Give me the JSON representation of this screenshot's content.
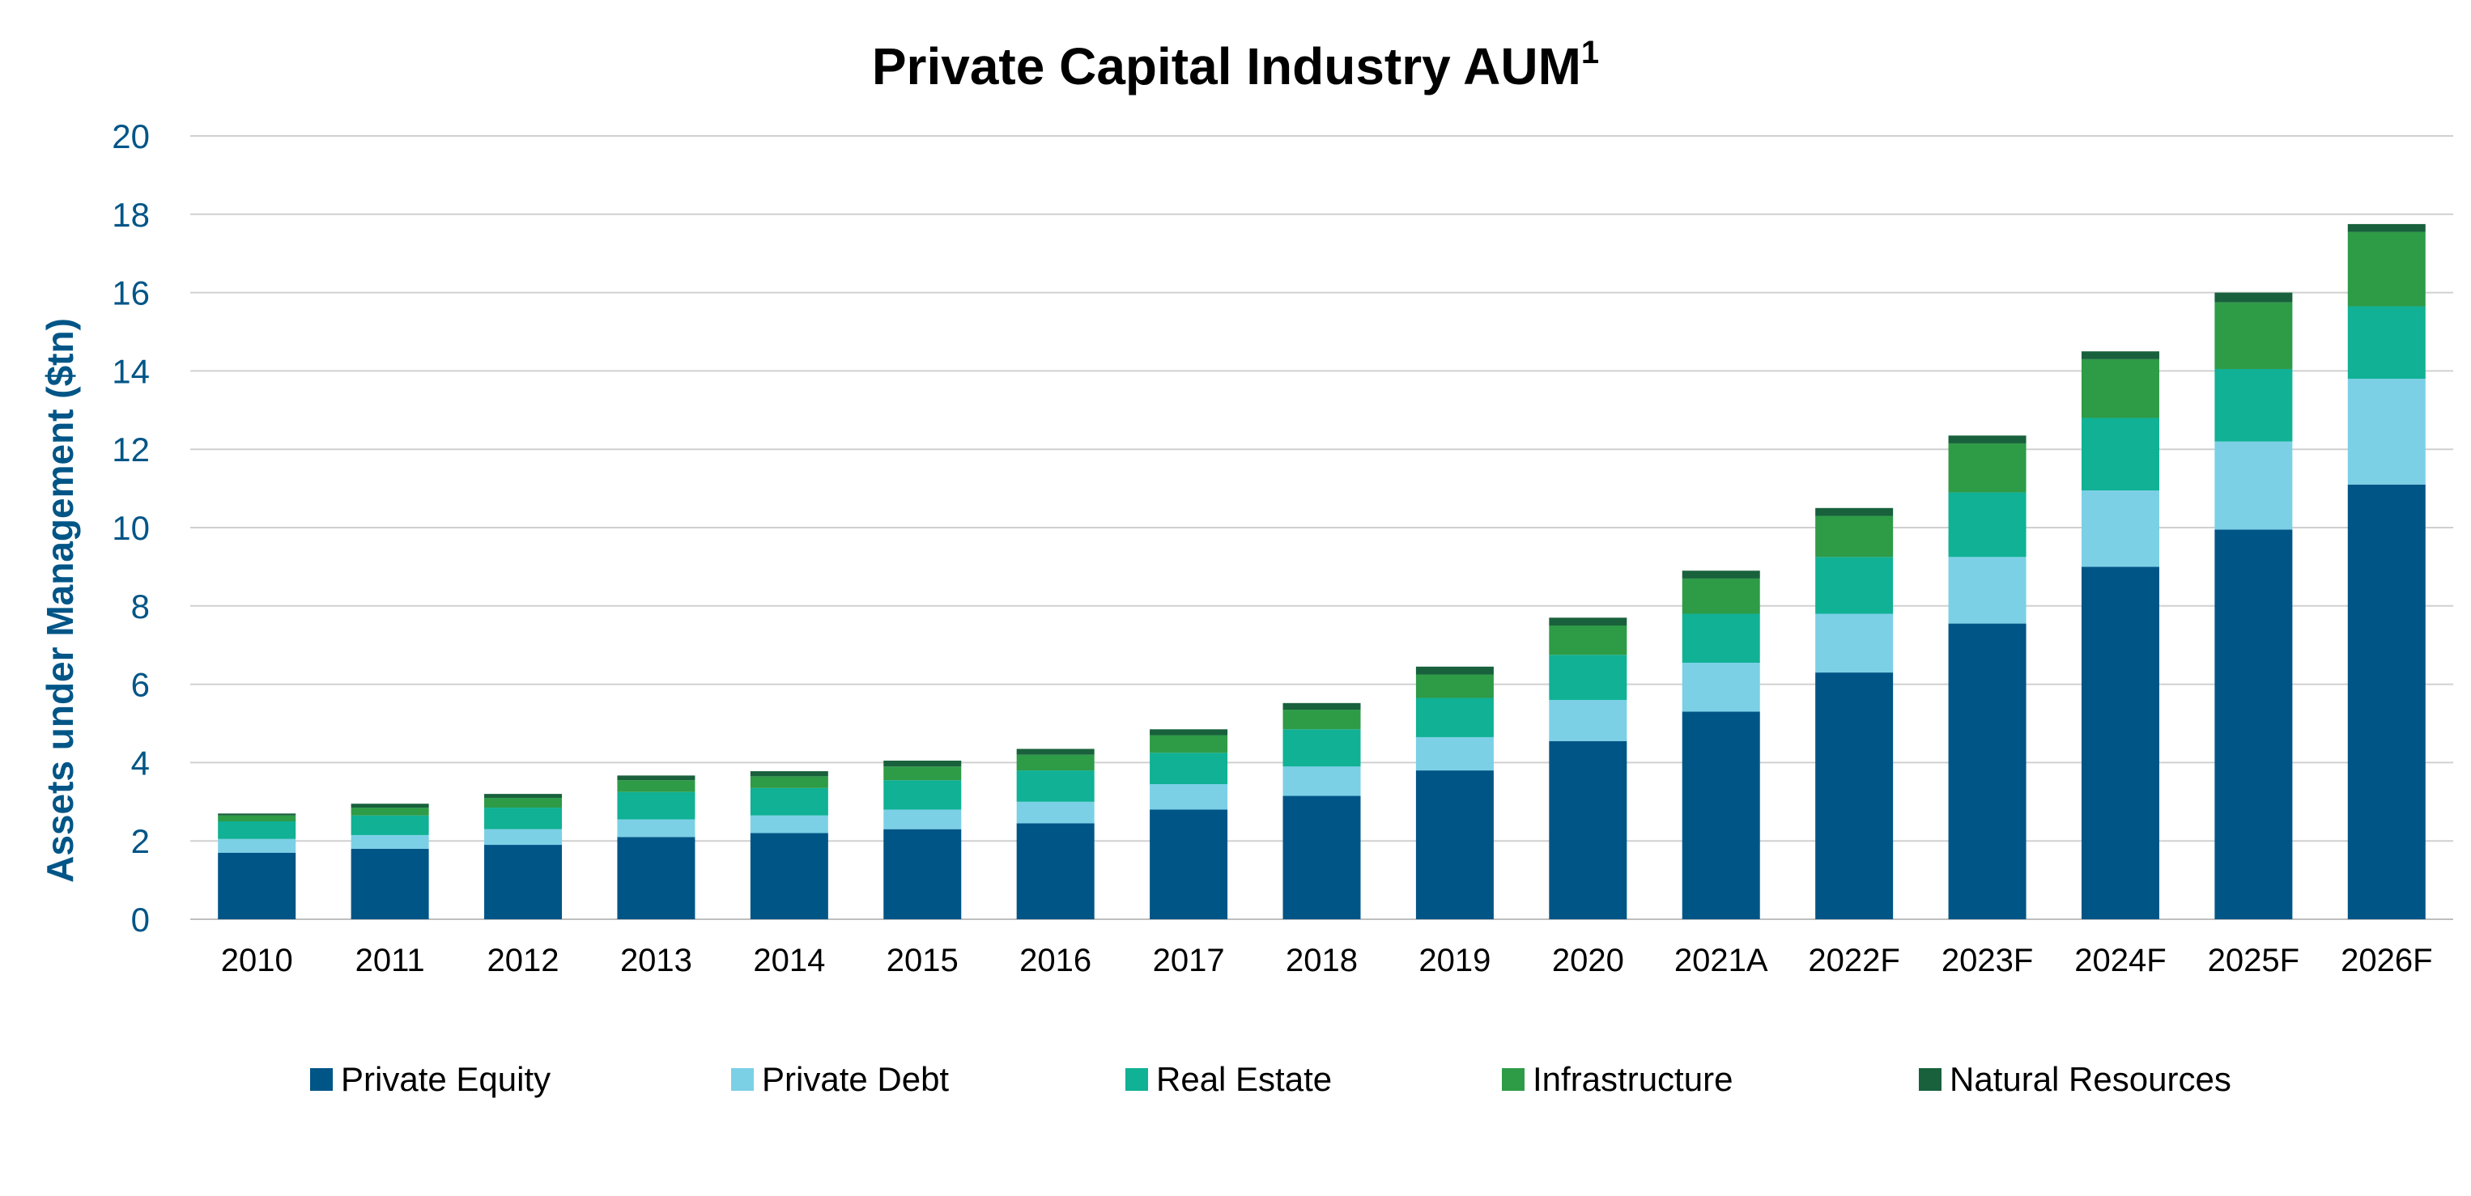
{
  "chart_data": {
    "type": "bar",
    "stacked": true,
    "title": "Private Capital Industry AUM",
    "title_superscript": "1",
    "xlabel": "",
    "ylabel": "Assets under Management ($tn)",
    "ylim": [
      0,
      20
    ],
    "yticks": [
      0,
      2,
      4,
      6,
      8,
      10,
      12,
      14,
      16,
      18,
      20
    ],
    "grid": true,
    "legend_position": "bottom",
    "categories": [
      "2010",
      "2011",
      "2012",
      "2013",
      "2014",
      "2015",
      "2016",
      "2017",
      "2018",
      "2019",
      "2020",
      "2021A",
      "2022F",
      "2023F",
      "2024F",
      "2025F",
      "2026F"
    ],
    "series": [
      {
        "name": "Private Equity",
        "color": "#005587",
        "values": [
          1.7,
          1.8,
          1.9,
          2.1,
          2.2,
          2.3,
          2.45,
          2.8,
          3.15,
          3.8,
          4.55,
          5.3,
          6.3,
          7.55,
          9.0,
          9.95,
          11.1
        ]
      },
      {
        "name": "Private Debt",
        "color": "#7bd0e6",
        "values": [
          0.35,
          0.35,
          0.4,
          0.45,
          0.45,
          0.5,
          0.55,
          0.65,
          0.75,
          0.85,
          1.05,
          1.25,
          1.5,
          1.7,
          1.95,
          2.25,
          2.7
        ]
      },
      {
        "name": "Real Estate",
        "color": "#10b195",
        "values": [
          0.45,
          0.5,
          0.55,
          0.7,
          0.7,
          0.75,
          0.8,
          0.8,
          0.95,
          1.0,
          1.15,
          1.25,
          1.45,
          1.65,
          1.85,
          1.85,
          1.85
        ]
      },
      {
        "name": "Infrastructure",
        "color": "#2e9b47",
        "values": [
          0.15,
          0.2,
          0.25,
          0.3,
          0.3,
          0.35,
          0.4,
          0.45,
          0.5,
          0.6,
          0.75,
          0.9,
          1.05,
          1.25,
          1.5,
          1.7,
          1.9
        ]
      },
      {
        "name": "Natural Resources",
        "color": "#18613c",
        "values": [
          0.05,
          0.1,
          0.1,
          0.12,
          0.13,
          0.15,
          0.15,
          0.15,
          0.17,
          0.2,
          0.2,
          0.2,
          0.2,
          0.2,
          0.2,
          0.25,
          0.2
        ]
      }
    ]
  }
}
